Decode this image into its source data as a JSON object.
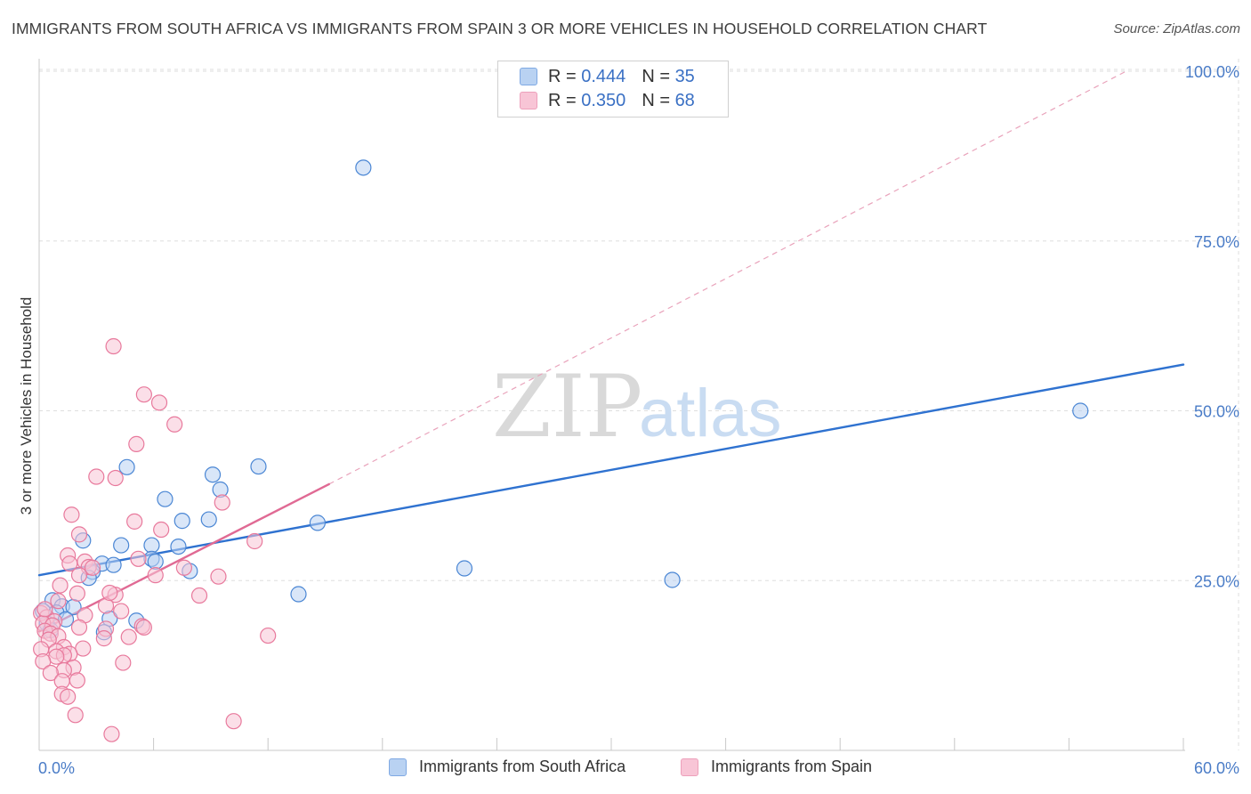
{
  "title": "IMMIGRANTS FROM SOUTH AFRICA VS IMMIGRANTS FROM SPAIN 3 OR MORE VEHICLES IN HOUSEHOLD CORRELATION CHART",
  "source": "Source: ZipAtlas.com",
  "watermark": {
    "zip": "ZIP",
    "atlas": "atlas"
  },
  "legend": {
    "rows": [
      {
        "r_label": "R =",
        "r_value": "0.444",
        "n_label": "N =",
        "n_value": "35",
        "color": "#8db3e8"
      },
      {
        "r_label": "R =",
        "r_value": "0.350",
        "n_label": "N =",
        "n_value": "68",
        "color": "#f4a5c0"
      }
    ]
  },
  "bottom_legend": [
    "Immigrants from South Africa",
    "Immigrants from Spain"
  ],
  "chart_data": {
    "type": "scatter",
    "title": "IMMIGRANTS FROM SOUTH AFRICA VS IMMIGRANTS FROM SPAIN 3 OR MORE VEHICLES IN HOUSEHOLD CORRELATION CHART",
    "xlabel": "",
    "ylabel": "3 or more Vehicles in Household",
    "xlim": [
      0,
      60
    ],
    "ylim": [
      0,
      100
    ],
    "x_tick_labels": [
      "0.0%",
      "60.0%"
    ],
    "y_tick_labels": [
      "25.0%",
      "50.0%",
      "75.0%",
      "100.0%"
    ],
    "y_tick_values": [
      25,
      50,
      75,
      100
    ],
    "grid": true,
    "legend_position": "top-center",
    "series": [
      {
        "name": "Immigrants from South Africa",
        "color": "#4a86d4",
        "fill": "#b9d2f2",
        "r": 0.444,
        "n": 35,
        "trend": {
          "x": [
            0,
            60
          ],
          "y": [
            25.8,
            56.8
          ],
          "style": "solid",
          "color": "#2f72d0"
        },
        "points": [
          [
            17.0,
            85.8
          ],
          [
            54.6,
            50.0
          ],
          [
            4.6,
            41.7
          ],
          [
            9.1,
            40.6
          ],
          [
            11.5,
            41.8
          ],
          [
            9.5,
            38.4
          ],
          [
            6.6,
            37.0
          ],
          [
            7.5,
            33.8
          ],
          [
            8.9,
            34.0
          ],
          [
            14.6,
            33.5
          ],
          [
            2.3,
            30.9
          ],
          [
            4.3,
            30.2
          ],
          [
            5.9,
            30.2
          ],
          [
            7.3,
            30.0
          ],
          [
            5.9,
            28.2
          ],
          [
            6.1,
            27.8
          ],
          [
            3.3,
            27.5
          ],
          [
            3.9,
            27.3
          ],
          [
            2.8,
            26.3
          ],
          [
            2.6,
            25.4
          ],
          [
            22.3,
            26.8
          ],
          [
            33.2,
            25.1
          ],
          [
            7.9,
            26.4
          ],
          [
            13.6,
            23.0
          ],
          [
            0.7,
            22.1
          ],
          [
            1.2,
            21.2
          ],
          [
            1.8,
            21.1
          ],
          [
            0.2,
            20.5
          ],
          [
            0.9,
            20.3
          ],
          [
            1.4,
            19.3
          ],
          [
            3.7,
            19.4
          ],
          [
            5.1,
            19.1
          ],
          [
            0.4,
            18.7
          ],
          [
            0.6,
            17.7
          ],
          [
            3.4,
            17.4
          ]
        ]
      },
      {
        "name": "Immigrants from Spain",
        "color": "#e8799c",
        "fill": "#f8c5d6",
        "r": 0.35,
        "n": 68,
        "trend": {
          "x": [
            0,
            15.2
          ],
          "y": [
            17.5,
            39.2
          ],
          "style": "solid",
          "color": "#e06a94",
          "extension": {
            "x": [
              15.2,
              57
            ],
            "y": [
              39.2,
              100
            ],
            "style": "dashed"
          }
        },
        "points": [
          [
            3.9,
            59.5
          ],
          [
            5.5,
            52.4
          ],
          [
            6.3,
            51.2
          ],
          [
            7.1,
            48.0
          ],
          [
            5.1,
            45.1
          ],
          [
            4.0,
            40.1
          ],
          [
            3.0,
            40.3
          ],
          [
            9.6,
            36.5
          ],
          [
            1.7,
            34.7
          ],
          [
            5.0,
            33.7
          ],
          [
            6.4,
            32.5
          ],
          [
            2.1,
            31.8
          ],
          [
            11.3,
            30.8
          ],
          [
            1.5,
            28.7
          ],
          [
            5.2,
            28.2
          ],
          [
            2.4,
            27.8
          ],
          [
            1.6,
            27.5
          ],
          [
            2.6,
            27.0
          ],
          [
            7.6,
            26.9
          ],
          [
            2.1,
            25.8
          ],
          [
            6.1,
            25.8
          ],
          [
            9.4,
            25.6
          ],
          [
            1.1,
            24.3
          ],
          [
            2.0,
            23.1
          ],
          [
            4.0,
            22.9
          ],
          [
            3.5,
            21.3
          ],
          [
            4.3,
            20.5
          ],
          [
            0.1,
            20.2
          ],
          [
            2.4,
            19.9
          ],
          [
            0.4,
            19.6
          ],
          [
            0.8,
            19.0
          ],
          [
            0.2,
            18.7
          ],
          [
            0.7,
            18.4
          ],
          [
            2.1,
            18.1
          ],
          [
            3.5,
            17.9
          ],
          [
            5.4,
            18.3
          ],
          [
            5.5,
            18.1
          ],
          [
            0.3,
            17.6
          ],
          [
            0.6,
            17.2
          ],
          [
            1.0,
            16.8
          ],
          [
            4.7,
            16.7
          ],
          [
            12.0,
            16.9
          ],
          [
            0.5,
            16.3
          ],
          [
            1.3,
            15.2
          ],
          [
            2.3,
            15.0
          ],
          [
            3.4,
            16.5
          ],
          [
            0.1,
            14.9
          ],
          [
            0.9,
            14.6
          ],
          [
            1.6,
            14.2
          ],
          [
            1.3,
            14.0
          ],
          [
            0.9,
            13.8
          ],
          [
            0.2,
            13.1
          ],
          [
            4.4,
            12.9
          ],
          [
            1.8,
            12.2
          ],
          [
            1.3,
            11.8
          ],
          [
            0.6,
            11.4
          ],
          [
            2.0,
            10.3
          ],
          [
            1.2,
            10.2
          ],
          [
            1.2,
            8.3
          ],
          [
            1.5,
            7.9
          ],
          [
            1.9,
            5.2
          ],
          [
            10.2,
            4.3
          ],
          [
            3.8,
            2.4
          ],
          [
            0.3,
            20.8
          ],
          [
            1.0,
            22.0
          ],
          [
            2.8,
            26.9
          ],
          [
            8.4,
            22.8
          ],
          [
            3.7,
            23.2
          ]
        ]
      }
    ]
  }
}
